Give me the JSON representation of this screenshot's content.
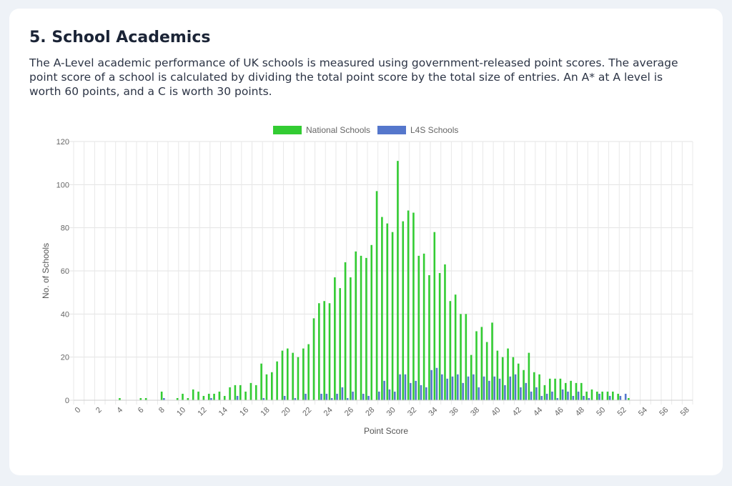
{
  "section": {
    "title": "5. School Academics",
    "description": "The A-Level academic performance of UK schools is measured using government-released point scores. The average point score of a school is calculated by dividing the total point score by the total size of entries. An A* at A level is worth 60 points, and a C is worth 30 points."
  },
  "chart_data": {
    "type": "bar",
    "xlabel": "Point Score",
    "ylabel": "No. of Schools",
    "ylim": [
      0,
      120
    ],
    "yticks": [
      0,
      20,
      40,
      60,
      80,
      100,
      120
    ],
    "xlim": [
      0,
      59
    ],
    "xticks": [
      0,
      2,
      4,
      6,
      8,
      10,
      12,
      14,
      16,
      18,
      20,
      22,
      24,
      26,
      28,
      30,
      32,
      34,
      36,
      38,
      40,
      42,
      44,
      46,
      48,
      50,
      52,
      54,
      56,
      58
    ],
    "grid": true,
    "legend_position": "top-center",
    "series": [
      {
        "name": "National Schools",
        "color": "#33cc33",
        "points": [
          [
            4.5,
            1
          ],
          [
            6.5,
            1
          ],
          [
            7,
            1
          ],
          [
            8.5,
            4
          ],
          [
            10,
            1
          ],
          [
            10.5,
            3
          ],
          [
            11,
            1
          ],
          [
            11.5,
            5
          ],
          [
            12,
            4
          ],
          [
            12.5,
            2
          ],
          [
            13,
            3
          ],
          [
            13.5,
            3
          ],
          [
            14,
            4
          ],
          [
            14.5,
            2
          ],
          [
            15,
            6
          ],
          [
            15.5,
            7
          ],
          [
            16,
            7
          ],
          [
            16.5,
            4
          ],
          [
            17,
            8
          ],
          [
            17.5,
            7
          ],
          [
            18,
            17
          ],
          [
            18.5,
            12
          ],
          [
            19,
            13
          ],
          [
            19.5,
            18
          ],
          [
            20,
            23
          ],
          [
            20.5,
            24
          ],
          [
            21,
            22
          ],
          [
            21.5,
            20
          ],
          [
            22,
            24
          ],
          [
            22.5,
            26
          ],
          [
            23,
            38
          ],
          [
            23.5,
            45
          ],
          [
            24,
            46
          ],
          [
            24.5,
            45
          ],
          [
            25,
            57
          ],
          [
            25.5,
            52
          ],
          [
            26,
            64
          ],
          [
            26.5,
            57
          ],
          [
            27,
            69
          ],
          [
            27.5,
            67
          ],
          [
            28,
            66
          ],
          [
            28.5,
            72
          ],
          [
            29,
            97
          ],
          [
            29.5,
            85
          ],
          [
            30,
            82
          ],
          [
            30.5,
            78
          ],
          [
            31,
            111
          ],
          [
            31.5,
            83
          ],
          [
            32,
            88
          ],
          [
            32.5,
            87
          ],
          [
            33,
            67
          ],
          [
            33.5,
            68
          ],
          [
            34,
            58
          ],
          [
            34.5,
            78
          ],
          [
            35,
            59
          ],
          [
            35.5,
            63
          ],
          [
            36,
            46
          ],
          [
            36.5,
            49
          ],
          [
            37,
            40
          ],
          [
            37.5,
            40
          ],
          [
            38,
            21
          ],
          [
            38.5,
            32
          ],
          [
            39,
            34
          ],
          [
            39.5,
            27
          ],
          [
            40,
            36
          ],
          [
            40.5,
            23
          ],
          [
            41,
            20
          ],
          [
            41.5,
            24
          ],
          [
            42,
            20
          ],
          [
            42.5,
            17
          ],
          [
            43,
            14
          ],
          [
            43.5,
            22
          ],
          [
            44,
            13
          ],
          [
            44.5,
            12
          ],
          [
            45,
            7
          ],
          [
            45.5,
            10
          ],
          [
            46,
            10
          ],
          [
            46.5,
            10
          ],
          [
            47,
            8
          ],
          [
            47.5,
            9
          ],
          [
            48,
            8
          ],
          [
            48.5,
            8
          ],
          [
            49,
            4
          ],
          [
            49.5,
            5
          ],
          [
            50,
            4
          ],
          [
            50.5,
            4
          ],
          [
            51,
            4
          ],
          [
            51.5,
            4
          ],
          [
            52,
            3
          ],
          [
            53,
            1
          ]
        ]
      },
      {
        "name": "L4S Schools",
        "color": "#5577cc",
        "points": [
          [
            8.5,
            1
          ],
          [
            13,
            1
          ],
          [
            15.5,
            2
          ],
          [
            18,
            1
          ],
          [
            20,
            2
          ],
          [
            21,
            1
          ],
          [
            22,
            3
          ],
          [
            23.5,
            3
          ],
          [
            24,
            3
          ],
          [
            24.5,
            1
          ],
          [
            25,
            3
          ],
          [
            25.5,
            6
          ],
          [
            26,
            1
          ],
          [
            26.5,
            4
          ],
          [
            27.5,
            3
          ],
          [
            28,
            2
          ],
          [
            29,
            4
          ],
          [
            29.5,
            9
          ],
          [
            30,
            5
          ],
          [
            30.5,
            4
          ],
          [
            31,
            12
          ],
          [
            31.5,
            12
          ],
          [
            32,
            8
          ],
          [
            32.5,
            9
          ],
          [
            33,
            7
          ],
          [
            33.5,
            6
          ],
          [
            34,
            14
          ],
          [
            34.5,
            15
          ],
          [
            35,
            12
          ],
          [
            35.5,
            10
          ],
          [
            36,
            11
          ],
          [
            36.5,
            12
          ],
          [
            37,
            8
          ],
          [
            37.5,
            11
          ],
          [
            38,
            12
          ],
          [
            38.5,
            6
          ],
          [
            39,
            11
          ],
          [
            39.5,
            9
          ],
          [
            40,
            11
          ],
          [
            40.5,
            10
          ],
          [
            41,
            7
          ],
          [
            41.5,
            11
          ],
          [
            42,
            12
          ],
          [
            42.5,
            6
          ],
          [
            43,
            8
          ],
          [
            43.5,
            4
          ],
          [
            44,
            6
          ],
          [
            44.5,
            2
          ],
          [
            45,
            3
          ],
          [
            45.5,
            4
          ],
          [
            46,
            1
          ],
          [
            46.5,
            5
          ],
          [
            47,
            4
          ],
          [
            47.5,
            2
          ],
          [
            48,
            4
          ],
          [
            48.5,
            2
          ],
          [
            49,
            1
          ],
          [
            50,
            3
          ],
          [
            51,
            2
          ],
          [
            52,
            2
          ],
          [
            52.5,
            3
          ]
        ]
      }
    ]
  }
}
